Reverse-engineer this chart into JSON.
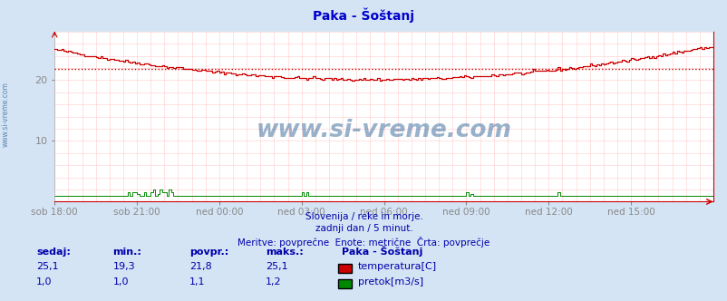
{
  "title": "Paka - Šoštanj",
  "title_color": "#0000cc",
  "bg_color": "#d4e4f4",
  "plot_bg_color": "#ffffff",
  "grid_color": "#ffcccc",
  "xlabel_color": "#0000aa",
  "text_color": "#0000aa",
  "xlim": [
    0,
    288
  ],
  "ylim": [
    0,
    28
  ],
  "yticks": [
    10,
    20
  ],
  "xtick_labels": [
    "sob 18:00",
    "sob 21:00",
    "ned 00:00",
    "ned 03:00",
    "ned 06:00",
    "ned 09:00",
    "ned 12:00",
    "ned 15:00"
  ],
  "xtick_positions": [
    0,
    36,
    72,
    108,
    144,
    180,
    216,
    252
  ],
  "avg_line_value": 21.8,
  "avg_line_color": "#cc0000",
  "watermark": "www.si-vreme.com",
  "watermark_color": "#336699",
  "footnote1": "Slovenija / reke in morje.",
  "footnote2": "zadnji dan / 5 minut.",
  "footnote3": "Meritve: povprečne  Enote: metrične  Črta: povprečje",
  "footnote_color": "#0000aa",
  "sidebar_text": "www.si-vreme.com",
  "sidebar_color": "#336699",
  "temp_color": "#cc0000",
  "flow_color": "#008800",
  "temp_min": 19.3,
  "temp_max": 25.1,
  "temp_avg": 21.8,
  "temp_current": 25.1,
  "flow_min": 1.0,
  "flow_max": 1.2,
  "flow_avg": 1.1,
  "flow_current": 1.0,
  "label_sedaj": "sedaj:",
  "label_min": "min.:",
  "label_povpr": "povpr.:",
  "label_maks": "maks.:",
  "label_station": "Paka - Šoštanj",
  "label_temp": "temperatura[C]",
  "label_flow": "pretok[m3/s]"
}
